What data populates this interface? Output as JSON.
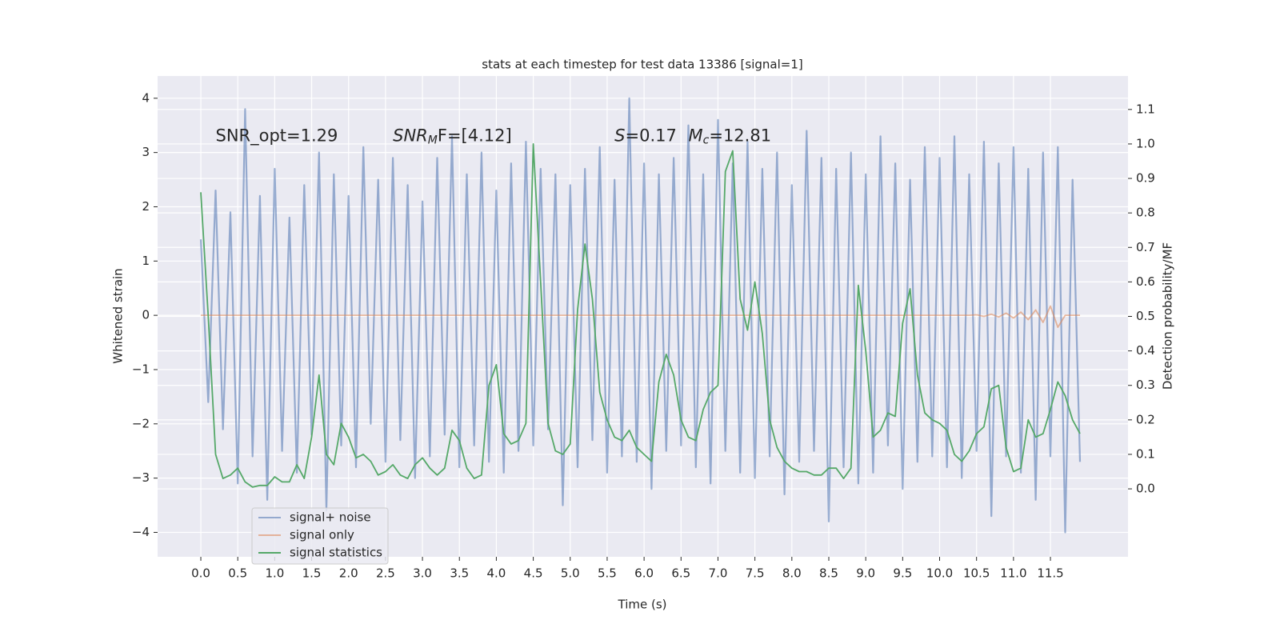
{
  "chart_data": {
    "type": "line",
    "title": "stats at each timestep for test data 13386 [signal=1]",
    "xlabel": "Time (s)",
    "ylabel": "Whitened strain",
    "y2label": "Detection probability/MF",
    "background": "#eaeaf2",
    "grid": true,
    "legend": "lower left",
    "annotations": [
      {
        "text": "SNR_opt=1.29",
        "x": 0.2,
        "y": 3.3
      },
      {
        "base": "SNR",
        "sub": "M",
        "rest": "F=[4.12]",
        "x": 2.6,
        "y": 3.3
      },
      {
        "base": "S",
        "rest": "=0.17",
        "x": 5.6,
        "y": 3.3
      },
      {
        "base": "M",
        "sub": "c",
        "rest": "=12.81",
        "x": 6.6,
        "y": 3.3
      }
    ],
    "x": [
      0,
      0.1,
      0.2,
      0.3,
      0.4,
      0.5,
      0.6,
      0.7,
      0.8,
      0.9,
      1,
      1.1,
      1.2,
      1.3,
      1.4,
      1.5,
      1.6,
      1.7,
      1.8,
      1.9,
      2,
      2.1,
      2.2,
      2.3,
      2.4,
      2.5,
      2.6,
      2.7,
      2.8,
      2.9,
      3,
      3.1,
      3.2,
      3.3,
      3.4,
      3.5,
      3.6,
      3.7,
      3.8,
      3.9,
      4,
      4.1,
      4.2,
      4.3,
      4.4,
      4.5,
      4.6,
      4.7,
      4.8,
      4.9,
      5,
      5.1,
      5.2,
      5.3,
      5.4,
      5.5,
      5.6,
      5.7,
      5.8,
      5.9,
      6,
      6.1,
      6.2,
      6.3,
      6.4,
      6.5,
      6.6,
      6.7,
      6.8,
      6.9,
      7,
      7.1,
      7.2,
      7.3,
      7.4,
      7.5,
      7.6,
      7.7,
      7.8,
      7.9,
      8,
      8.1,
      8.2,
      8.3,
      8.4,
      8.5,
      8.6,
      8.7,
      8.8,
      8.9,
      9,
      9.1,
      9.2,
      9.3,
      9.4,
      9.5,
      9.6,
      9.7,
      9.8,
      9.9,
      10,
      10.1,
      10.2,
      10.3,
      10.4,
      10.5,
      10.6,
      10.7,
      10.8,
      10.9,
      11,
      11.1,
      11.2,
      11.3,
      11.4,
      11.5,
      11.6,
      11.7,
      11.8,
      11.9
    ],
    "series": [
      {
        "name": "signal+ noise",
        "color": "#4c72b0",
        "values": [
          1.4,
          -1.6,
          2.3,
          -2.1,
          1.9,
          -3.1,
          3.8,
          -2.6,
          2.2,
          -3.4,
          2.7,
          -2.5,
          1.8,
          -2.9,
          2.4,
          -2.2,
          3.0,
          -3.6,
          2.6,
          -2.4,
          2.2,
          -2.8,
          3.1,
          -2.0,
          2.5,
          -2.7,
          2.9,
          -2.3,
          2.4,
          -3.0,
          2.1,
          -2.6,
          2.9,
          -2.2,
          3.3,
          -2.8,
          2.6,
          -2.4,
          3.0,
          -2.7,
          2.3,
          -2.9,
          2.8,
          -2.5,
          3.2,
          -2.4,
          2.7,
          -2.1,
          2.6,
          -3.5,
          2.4,
          -2.8,
          2.7,
          -2.3,
          3.1,
          -2.9,
          2.5,
          -2.6,
          4.0,
          -2.7,
          2.8,
          -3.2,
          2.6,
          -2.5,
          2.9,
          -2.4,
          3.5,
          -2.8,
          2.6,
          -3.1,
          3.6,
          -2.5,
          2.8,
          -2.9,
          3.2,
          -3.0,
          2.7,
          -2.6,
          3.0,
          -3.3,
          2.4,
          -2.7,
          3.4,
          -2.5,
          2.9,
          -3.8,
          2.7,
          -2.8,
          3.0,
          -3.1,
          2.6,
          -2.9,
          3.3,
          -2.4,
          2.8,
          -3.2,
          2.5,
          -2.7,
          3.1,
          -2.6,
          2.9,
          -2.8,
          3.3,
          -3.0,
          2.6,
          -2.5,
          3.2,
          -3.7,
          2.8,
          -2.6,
          3.1,
          -2.9,
          2.7,
          -3.4,
          3.0,
          -2.6,
          3.1,
          -4.0,
          2.5,
          -2.7
        ]
      },
      {
        "name": "signal only",
        "color": "#dd8452",
        "values": [
          0,
          0,
          0,
          0,
          0,
          0,
          0,
          0,
          0,
          0,
          0,
          0,
          0,
          0,
          0,
          0,
          0,
          0,
          0,
          0,
          0,
          0,
          0,
          0,
          0,
          0,
          0,
          0,
          0,
          0,
          0,
          0,
          0,
          0,
          0,
          0,
          0,
          0,
          0,
          0,
          0,
          0,
          0,
          0,
          0,
          0,
          0,
          0,
          0,
          0,
          0,
          0,
          0,
          0,
          0,
          0,
          0,
          0,
          0,
          0,
          0,
          0,
          0,
          0,
          0,
          0,
          0,
          0,
          0,
          0,
          0,
          0,
          0,
          0,
          0,
          0,
          0,
          0,
          0,
          0,
          0,
          0,
          0,
          0,
          0,
          0,
          0,
          0,
          0,
          0,
          0,
          0,
          0,
          0,
          0,
          0,
          0,
          0,
          0,
          0,
          0,
          0,
          0,
          0,
          0,
          0.01,
          -0.02,
          0.02,
          -0.03,
          0.04,
          -0.05,
          0.06,
          -0.08,
          0.1,
          -0.13,
          0.17,
          -0.22,
          0,
          0,
          0
        ]
      },
      {
        "name": "signal statistics",
        "color": "#55a868",
        "axis": "y2",
        "values": [
          0.86,
          0.5,
          0.1,
          0.03,
          0.04,
          0.06,
          0.02,
          0.005,
          0.01,
          0.01,
          0.035,
          0.02,
          0.02,
          0.07,
          0.03,
          0.15,
          0.33,
          0.1,
          0.07,
          0.19,
          0.15,
          0.09,
          0.1,
          0.08,
          0.04,
          0.05,
          0.07,
          0.04,
          0.03,
          0.07,
          0.09,
          0.06,
          0.04,
          0.06,
          0.17,
          0.14,
          0.06,
          0.03,
          0.04,
          0.3,
          0.36,
          0.16,
          0.13,
          0.14,
          0.19,
          1.0,
          0.6,
          0.19,
          0.11,
          0.1,
          0.13,
          0.52,
          0.71,
          0.55,
          0.28,
          0.2,
          0.15,
          0.14,
          0.17,
          0.12,
          0.1,
          0.08,
          0.31,
          0.39,
          0.33,
          0.2,
          0.15,
          0.14,
          0.23,
          0.28,
          0.3,
          0.92,
          0.98,
          0.55,
          0.46,
          0.6,
          0.45,
          0.2,
          0.12,
          0.08,
          0.06,
          0.05,
          0.05,
          0.04,
          0.04,
          0.06,
          0.06,
          0.03,
          0.06,
          0.59,
          0.4,
          0.15,
          0.17,
          0.22,
          0.21,
          0.48,
          0.58,
          0.33,
          0.22,
          0.2,
          0.19,
          0.17,
          0.1,
          0.08,
          0.11,
          0.16,
          0.18,
          0.29,
          0.3,
          0.12,
          0.05,
          0.06,
          0.2,
          0.15,
          0.16,
          0.23,
          0.31,
          0.27,
          0.2,
          0.16
        ]
      }
    ],
    "xlim": [
      -0.585,
      12.55
    ],
    "xticks": [
      {
        "value": 0,
        "label": "0.0"
      },
      0.5,
      {
        "value": 1,
        "label": "1.0"
      },
      1.5,
      {
        "value": 2,
        "label": "2.0"
      },
      2.5,
      {
        "value": 3,
        "label": "3.0"
      },
      3.5,
      {
        "value": 4,
        "label": "4.0"
      },
      4.5,
      {
        "value": 5,
        "label": "5.0"
      },
      5.5,
      {
        "value": 6,
        "label": "6.0"
      },
      6.5,
      {
        "value": 7,
        "label": "7.0"
      },
      7.5,
      {
        "value": 8,
        "label": "8.0"
      },
      8.5,
      {
        "value": 9,
        "label": "9.0"
      },
      9.5,
      {
        "value": 10,
        "label": "10.0"
      },
      10.5,
      {
        "value": 11,
        "label": "11.0"
      },
      11.5
    ],
    "ylim": [
      -4.45,
      4.41
    ],
    "yticks": [
      {
        "value": -4,
        "label": "−4"
      },
      {
        "value": -3,
        "label": "−3"
      },
      {
        "value": -2,
        "label": "−2"
      },
      {
        "value": -1,
        "label": "−1"
      },
      0,
      1,
      2,
      3,
      4
    ],
    "y2lim": [
      -0.197,
      1.197
    ],
    "y2ticks": [
      {
        "value": 0,
        "label": "0.0"
      },
      0.1,
      0.2,
      0.3,
      0.4,
      0.5,
      0.6,
      0.7,
      0.8,
      0.9,
      {
        "value": 1,
        "label": "1.0"
      },
      1.1
    ]
  }
}
